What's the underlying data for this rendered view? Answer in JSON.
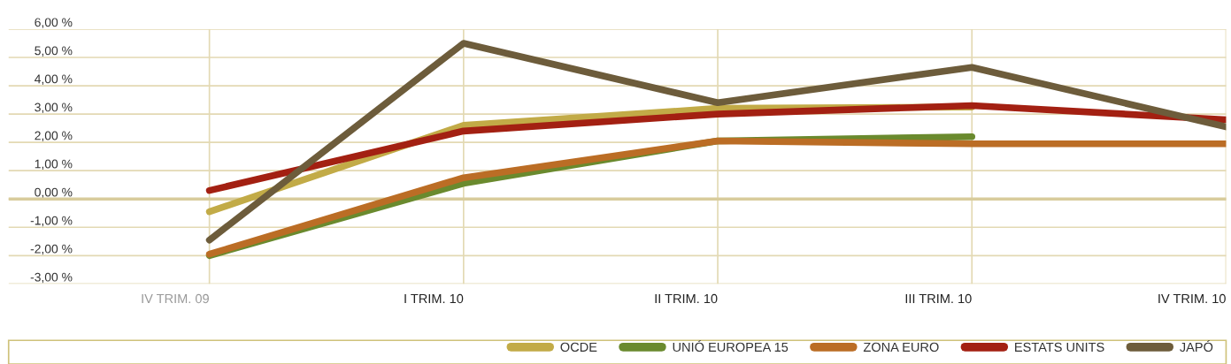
{
  "chart_data": {
    "type": "line",
    "categories": [
      "IV TRIM. 09",
      "I TRIM. 10",
      "II TRIM. 10",
      "III TRIM. 10",
      "IV TRIM. 10"
    ],
    "series": [
      {
        "name": "OCDE",
        "color": "#c2ab47",
        "values": [
          -0.45,
          2.6,
          3.2,
          3.25,
          null
        ]
      },
      {
        "name": "UNIÓ EUROPEA 15",
        "color": "#6a8a2e",
        "values": [
          -2.0,
          0.55,
          2.05,
          2.2,
          null
        ]
      },
      {
        "name": "ZONA EURO",
        "color": "#bb6d25",
        "values": [
          -1.95,
          0.75,
          2.05,
          1.95,
          1.95
        ]
      },
      {
        "name": "ESTATS UNITS",
        "color": "#a32012",
        "values": [
          0.3,
          2.4,
          3.0,
          3.3,
          2.8
        ]
      },
      {
        "name": "JAPÓ",
        "color": "#6d5c3b",
        "values": [
          -1.45,
          5.5,
          3.4,
          4.65,
          2.55
        ]
      }
    ],
    "ylim": [
      -3,
      6
    ],
    "yticks": [
      {
        "value": -3,
        "label": "-3,00 %"
      },
      {
        "value": -2,
        "label": "-2,00 %"
      },
      {
        "value": -1,
        "label": "-1,00 %"
      },
      {
        "value": 0,
        "label": "0,00 %"
      },
      {
        "value": 1,
        "label": "1,00 %"
      },
      {
        "value": 2,
        "label": "2,00 %"
      },
      {
        "value": 3,
        "label": "3,00 %"
      },
      {
        "value": 4,
        "label": "4,00 %"
      },
      {
        "value": 5,
        "label": "5,00 %"
      },
      {
        "value": 6,
        "label": "6,00 %"
      }
    ],
    "ref_lines": [
      {
        "axis": "y",
        "value": 0,
        "color": "#d8cc9c"
      }
    ],
    "grid": true,
    "legend": "bottom right",
    "marker": "none",
    "line_style": "solid"
  }
}
